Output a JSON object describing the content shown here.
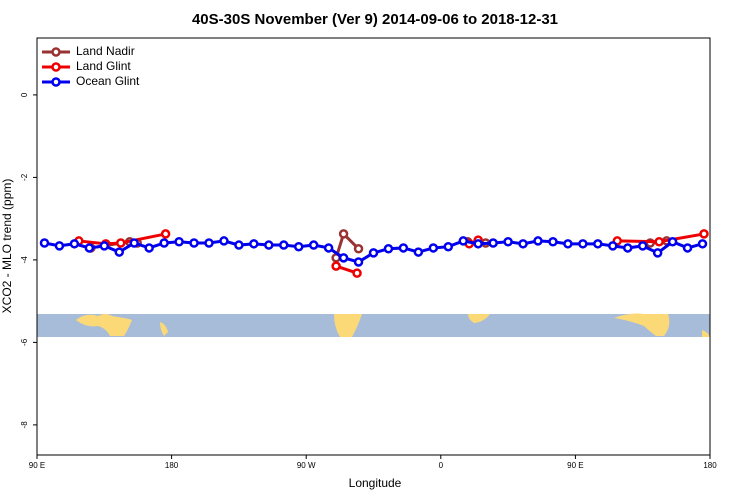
{
  "chart_data": {
    "type": "line",
    "title": "40S-30S November (Ver 9)   2014-09-06 to 2018-12-31",
    "x_label": "Longitude",
    "y_label": "XCO2 - MLO trend (ppm)",
    "xlim": [
      90,
      540
    ],
    "ylim": [
      -8.73,
      1.38
    ],
    "xticks": [
      {
        "value": 90,
        "label": "90 E"
      },
      180,
      {
        "value": 270,
        "label": "90 W"
      },
      {
        "value": 360,
        "label": "0"
      },
      {
        "value": 450,
        "label": "90 E"
      },
      {
        "value": 540,
        "label": "180"
      }
    ],
    "yticks": [
      0,
      -2,
      -4,
      -6,
      -8
    ],
    "legend": "top-left",
    "series": [
      {
        "name": "Land Nadir",
        "color": "#993333",
        "x": [
          126,
          152,
          157,
          220,
          290,
          295,
          305,
          340,
          378,
          390,
          450,
          500,
          511
        ],
        "values": [
          -3.71,
          -3.56,
          -3.59,
          null,
          -3.95,
          -3.37,
          -3.73,
          null,
          -3.56,
          -3.59,
          null,
          -3.59,
          -3.54
        ]
      },
      {
        "name": "Land Glint",
        "color": "#ee0000",
        "x": [
          118,
          136,
          146,
          176,
          230,
          290,
          304,
          340,
          379,
          385,
          430,
          478,
          506,
          536
        ],
        "values": [
          -3.54,
          -3.61,
          -3.59,
          -3.37,
          null,
          -4.15,
          -4.32,
          null,
          -3.61,
          -3.52,
          null,
          -3.54,
          -3.56,
          -3.37
        ]
      },
      {
        "name": "Ocean Glint",
        "color": "#0000ee",
        "x": [
          95,
          105,
          115,
          125,
          135,
          145,
          155,
          165,
          175,
          185,
          195,
          205,
          215,
          225,
          235,
          245,
          255,
          265,
          275,
          285,
          295,
          305,
          315,
          325,
          335,
          345,
          355,
          365,
          375,
          385,
          395,
          405,
          415,
          425,
          435,
          445,
          455,
          465,
          475,
          485,
          495,
          505,
          515,
          525,
          535
        ],
        "values": [
          -3.59,
          -3.66,
          -3.61,
          -3.71,
          -3.66,
          -3.81,
          -3.59,
          -3.71,
          -3.59,
          -3.56,
          -3.59,
          -3.59,
          -3.54,
          -3.64,
          -3.61,
          -3.64,
          -3.64,
          -3.68,
          -3.64,
          -3.71,
          -3.95,
          -4.05,
          -3.83,
          -3.73,
          -3.71,
          -3.81,
          -3.71,
          -3.68,
          -3.54,
          -3.61,
          -3.59,
          -3.56,
          -3.61,
          -3.54,
          -3.56,
          -3.61,
          -3.61,
          -3.61,
          -3.66,
          -3.71,
          -3.66,
          -3.83,
          -3.56,
          -3.71,
          -3.61
        ]
      }
    ]
  }
}
